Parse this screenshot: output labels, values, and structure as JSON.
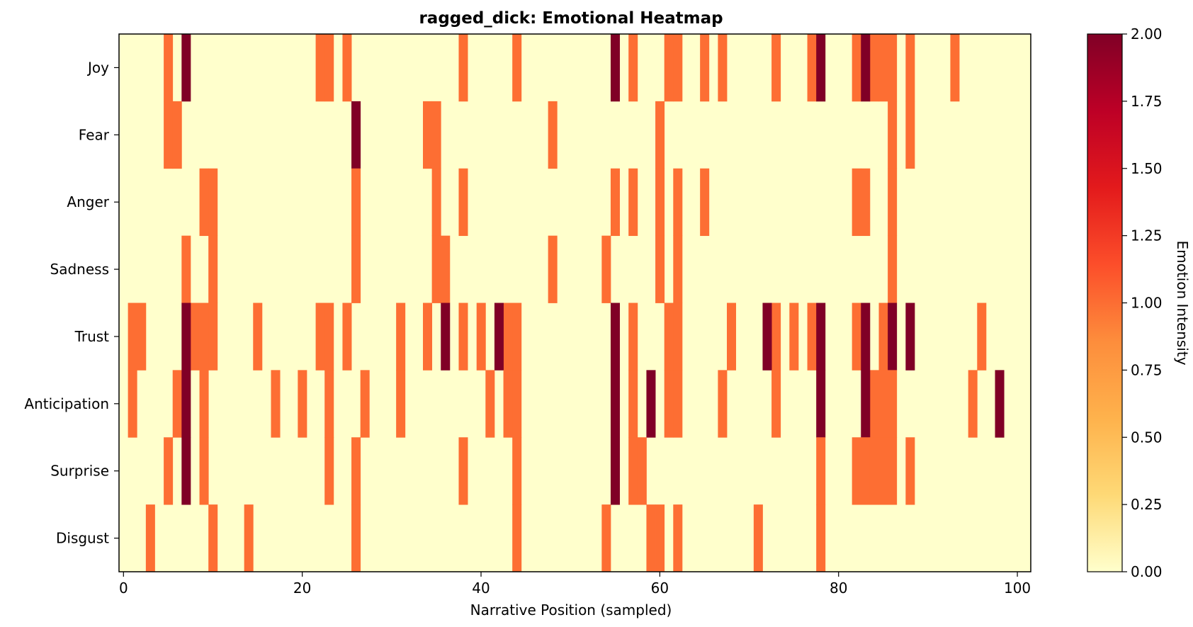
{
  "chart_data": {
    "type": "heatmap",
    "title": "ragged_dick: Emotional Heatmap",
    "xlabel": "Narrative Position (sampled)",
    "ylabel": "",
    "colorbar_label": "Emotion Intensity",
    "colormap": "YlOrRd",
    "colormap_stops": [
      "#ffffcc",
      "#fed976",
      "#feb24c",
      "#fd8d3c",
      "#fc4e2a",
      "#e31a1c",
      "#bd0026",
      "#800026"
    ],
    "vmin": 0,
    "vmax": 2,
    "x_range": [
      -0.5,
      101.5
    ],
    "x_ticks": [
      0,
      20,
      40,
      60,
      80,
      100
    ],
    "x_tick_labels": [
      "0",
      "20",
      "40",
      "60",
      "80",
      "100"
    ],
    "colorbar_ticks": [
      0,
      0.25,
      0.5,
      0.75,
      1,
      1.25,
      1.5,
      1.75,
      2
    ],
    "colorbar_tick_labels": [
      "0.00",
      "0.25",
      "0.50",
      "0.75",
      "1.00",
      "1.25",
      "1.50",
      "1.75",
      "2.00"
    ],
    "emotions": [
      "Joy",
      "Fear",
      "Anger",
      "Sadness",
      "Trust",
      "Anticipation",
      "Surprise",
      "Disgust"
    ],
    "num_positions": 102,
    "cells": {
      "Joy": {
        "1": [
          5,
          22,
          23,
          25,
          38,
          44,
          57,
          61,
          62,
          65,
          67,
          73,
          77,
          82,
          84,
          85,
          86,
          88,
          93
        ],
        "2": [
          7,
          55,
          78,
          83
        ]
      },
      "Fear": {
        "1": [
          5,
          6,
          34,
          35,
          48,
          60,
          86,
          88
        ],
        "2": [
          26
        ]
      },
      "Anger": {
        "1": [
          9,
          10,
          26,
          35,
          38,
          55,
          57,
          60,
          62,
          65,
          82,
          83,
          86
        ],
        "2": []
      },
      "Sadness": {
        "1": [
          7,
          10,
          26,
          35,
          36,
          48,
          54,
          60,
          62,
          86
        ],
        "2": []
      },
      "Trust": {
        "1": [
          1,
          2,
          8,
          9,
          10,
          15,
          22,
          23,
          25,
          31,
          34,
          38,
          40,
          43,
          44,
          57,
          61,
          62,
          68,
          73,
          75,
          77,
          82,
          85,
          96
        ],
        "2": [
          7,
          36,
          42,
          55,
          72,
          78,
          83,
          86,
          88
        ]
      },
      "Anticipation": {
        "1": [
          1,
          6,
          9,
          17,
          20,
          23,
          27,
          31,
          41,
          43,
          44,
          57,
          61,
          62,
          67,
          73,
          84,
          85,
          86,
          95
        ],
        "2": [
          7,
          55,
          59,
          78,
          83,
          98
        ]
      },
      "Surprise": {
        "1": [
          5,
          9,
          23,
          26,
          38,
          44,
          57,
          58,
          78,
          82,
          83,
          84,
          85,
          86,
          88
        ],
        "2": [
          7,
          55
        ]
      },
      "Disgust": {
        "1": [
          3,
          10,
          14,
          26,
          44,
          54,
          59,
          60,
          62,
          71,
          78
        ],
        "2": []
      }
    }
  }
}
